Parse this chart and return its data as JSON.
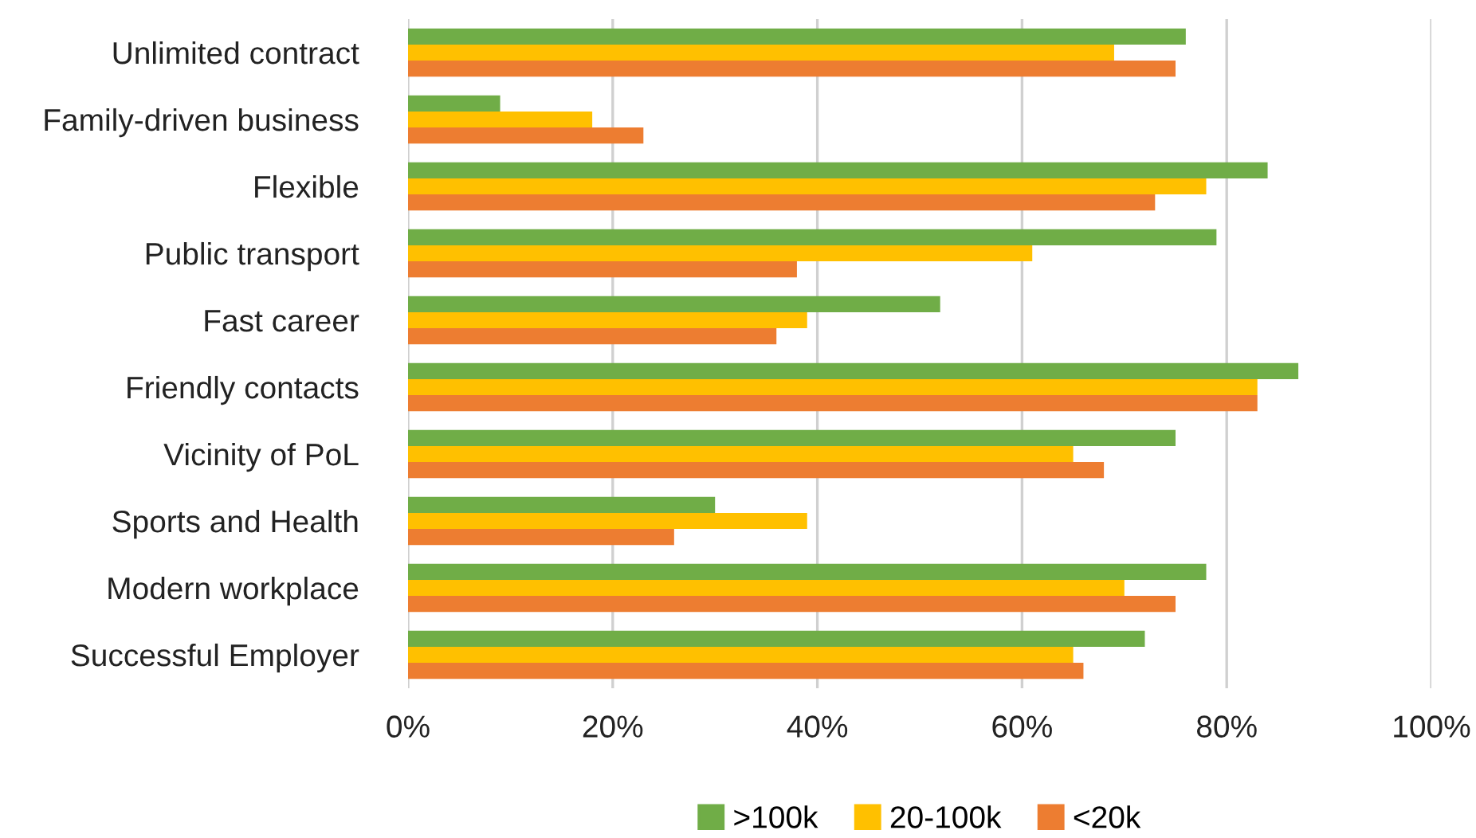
{
  "chart_data": {
    "type": "bar",
    "orientation": "horizontal",
    "categories": [
      "Unlimited contract",
      "Family-driven business",
      "Flexible",
      "Public transport",
      "Fast career",
      "Friendly contacts",
      "Vicinity of PoL",
      "Sports and Health",
      "Modern workplace",
      "Successful Employer"
    ],
    "series": [
      {
        "name": ">100k",
        "color": "#70ad47",
        "values": [
          76,
          9,
          84,
          79,
          52,
          87,
          75,
          30,
          78,
          72
        ]
      },
      {
        "name": "20-100k",
        "color": "#ffc000",
        "values": [
          69,
          18,
          78,
          61,
          39,
          83,
          65,
          39,
          70,
          65
        ]
      },
      {
        "name": "<20k",
        "color": "#ed7d31",
        "values": [
          75,
          23,
          73,
          38,
          36,
          83,
          68,
          26,
          75,
          66
        ]
      }
    ],
    "xlim": [
      0,
      100
    ],
    "xticks": [
      {
        "value": 0,
        "label": "0%"
      },
      {
        "value": 20,
        "label": "20%"
      },
      {
        "value": 40,
        "label": "40%"
      },
      {
        "value": 60,
        "label": "60%"
      },
      {
        "value": 80,
        "label": "80%"
      },
      {
        "value": 100,
        "label": "100%"
      }
    ],
    "grid": "x",
    "legend": "bottom"
  }
}
